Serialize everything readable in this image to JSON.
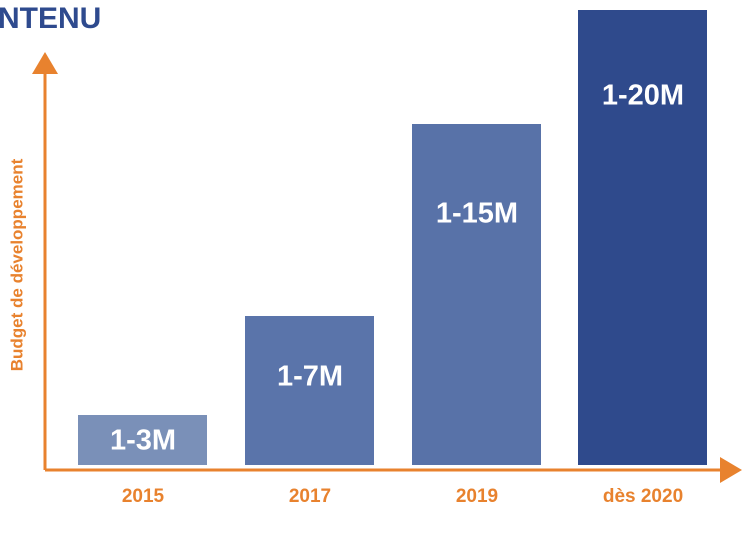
{
  "header": {
    "title": "NTENU"
  },
  "axis": {
    "y_label": "Budget de développement"
  },
  "bars": [
    {
      "label": "1-3M",
      "category": "2015"
    },
    {
      "label": "1-7M",
      "category": "2017"
    },
    {
      "label": "1-15M",
      "category": "2019"
    },
    {
      "label": "1-20M",
      "category": "dès 2020"
    }
  ]
}
